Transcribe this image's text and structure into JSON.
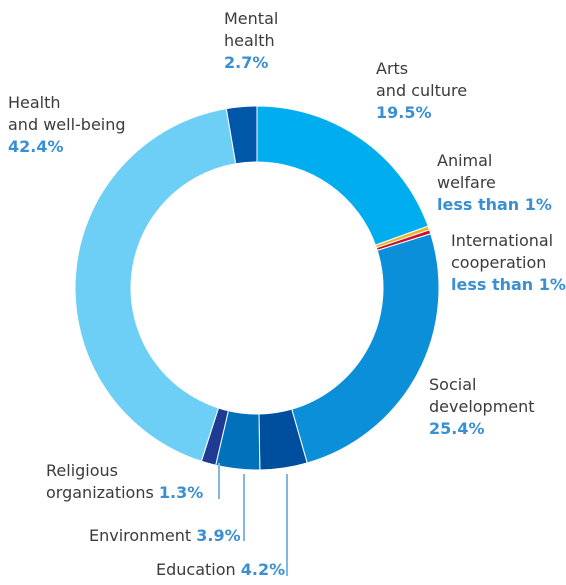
{
  "chart_data": {
    "type": "pie",
    "title": "",
    "donut": true,
    "slices": [
      {
        "name": "Arts and culture",
        "label_lines": [
          "Arts",
          "and culture"
        ],
        "value_text": "19.5%",
        "value": 19.5,
        "color": "#00aeef"
      },
      {
        "name": "Animal welfare",
        "label_lines": [
          "Animal",
          "welfare"
        ],
        "value_text": "less than 1%",
        "value": 0.35,
        "color": "#f0b323"
      },
      {
        "name": "International cooperation",
        "label_lines": [
          "International",
          "cooperation"
        ],
        "value_text": "less than 1%",
        "value": 0.35,
        "color": "#c8102e"
      },
      {
        "name": "Social development",
        "label_lines": [
          "Social",
          "development"
        ],
        "value_text": "25.4%",
        "value": 25.4,
        "color": "#0a8fd8"
      },
      {
        "name": "Education",
        "label_lines": [
          "Education"
        ],
        "value_text": "4.2%",
        "value": 4.2,
        "color": "#004f9f"
      },
      {
        "name": "Environment",
        "label_lines": [
          "Environment"
        ],
        "value_text": "3.9%",
        "value": 3.9,
        "color": "#0072bc"
      },
      {
        "name": "Religious organizations",
        "label_lines": [
          "Religious",
          "organizations"
        ],
        "value_text": "1.3%",
        "value": 1.3,
        "color": "#1f3a93"
      },
      {
        "name": "Health and well-being",
        "label_lines": [
          "Health",
          "and well-being"
        ],
        "value_text": "42.4%",
        "value": 42.4,
        "color": "#6dcff6"
      },
      {
        "name": "Mental health",
        "label_lines": [
          "Mental",
          "health"
        ],
        "value_text": "2.7%",
        "value": 2.7,
        "color": "#0057a8"
      }
    ]
  }
}
